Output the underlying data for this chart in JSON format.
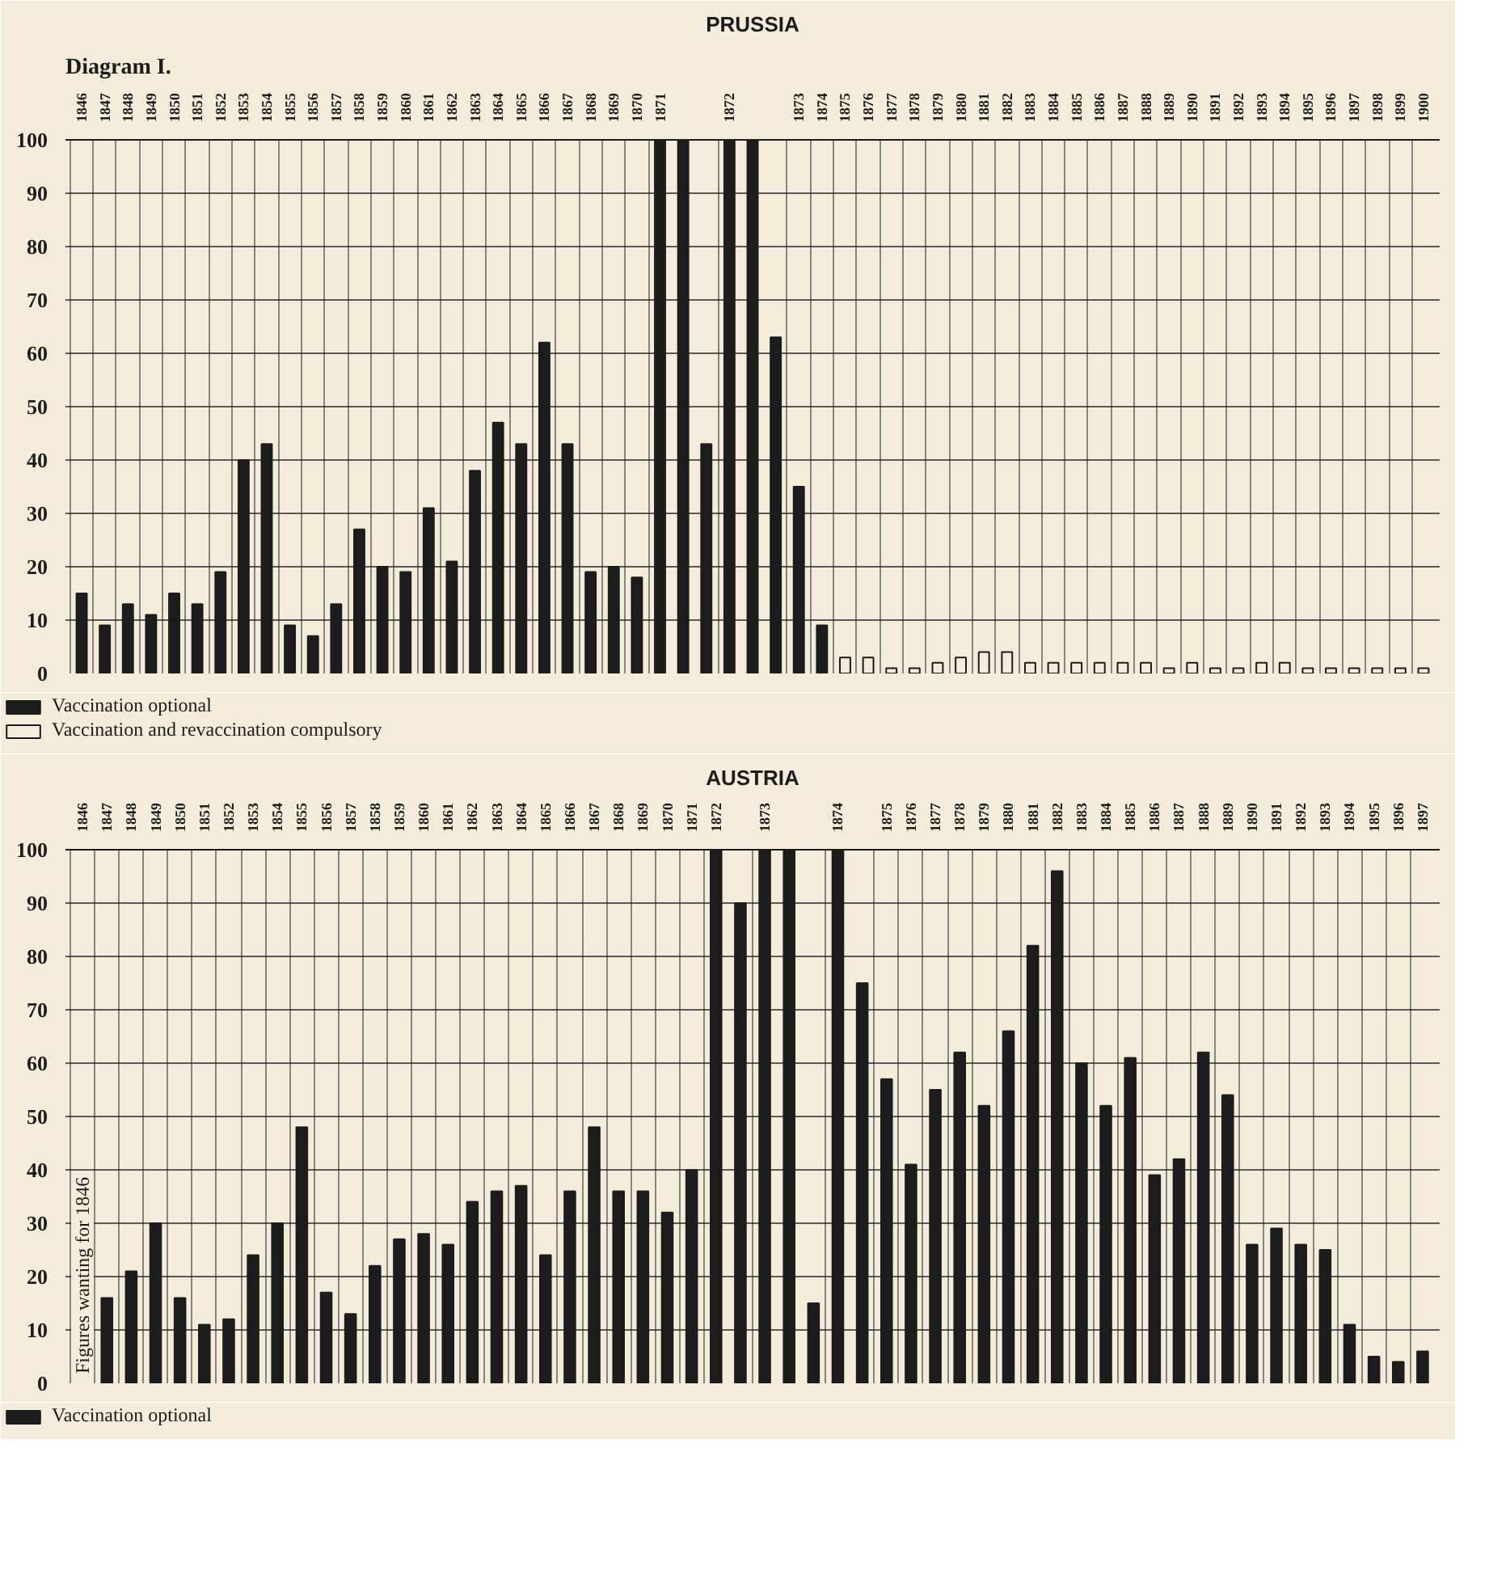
{
  "chart_data": [
    {
      "type": "bar",
      "title": "PRUSSIA",
      "annotations": [
        "Diagram I."
      ],
      "categories": [
        "1846",
        "1847",
        "1848",
        "1849",
        "1850",
        "1851",
        "1852",
        "1853",
        "1854",
        "1855",
        "1856",
        "1857",
        "1858",
        "1859",
        "1860",
        "1861",
        "1862",
        "1863",
        "1864",
        "1865",
        "1866",
        "1867",
        "1868",
        "1869",
        "1870",
        "1871",
        null,
        null,
        "1872",
        null,
        null,
        "1873",
        "1874",
        "1875",
        "1876",
        "1877",
        "1878",
        "1879",
        "1880",
        "1881",
        "1882",
        "1883",
        "1884",
        "1885",
        "1886",
        "1887",
        "1888",
        "1889",
        "1890",
        "1891",
        "1892",
        "1893",
        "1894",
        "1895",
        "1896",
        "1897",
        "1898",
        "1899",
        "1900"
      ],
      "series": [
        {
          "name": "Vaccination optional",
          "color": "#1c1c1c",
          "values": [
            15,
            9,
            13,
            11,
            15,
            13,
            19,
            40,
            43,
            9,
            7,
            13,
            27,
            20,
            19,
            31,
            21,
            38,
            47,
            43,
            62,
            43,
            19,
            20,
            18,
            100,
            100,
            43,
            100,
            100,
            63,
            35,
            9,
            null,
            null,
            null,
            null,
            null,
            null,
            null,
            null,
            null,
            null,
            null,
            null,
            null,
            null,
            null,
            null,
            null,
            null,
            null,
            null,
            null,
            null,
            null,
            null,
            null,
            null
          ]
        },
        {
          "name": "Vaccination and revaccination compulsory",
          "color": "#f3ecda",
          "values": [
            null,
            null,
            null,
            null,
            null,
            null,
            null,
            null,
            null,
            null,
            null,
            null,
            null,
            null,
            null,
            null,
            null,
            null,
            null,
            null,
            null,
            null,
            null,
            null,
            null,
            null,
            null,
            null,
            null,
            null,
            null,
            null,
            null,
            3,
            3,
            1,
            1,
            2,
            3,
            4,
            4,
            2,
            2,
            2,
            2,
            2,
            2,
            1,
            2,
            1,
            1,
            2,
            2,
            1,
            1,
            1,
            1,
            1,
            1
          ]
        }
      ],
      "ylim": [
        0,
        100
      ],
      "yticks": [
        0,
        10,
        20,
        30,
        40,
        50,
        60,
        70,
        80,
        90,
        100
      ],
      "grid": true,
      "legend": "bottom left"
    },
    {
      "type": "bar",
      "title": "AUSTRIA",
      "annotations": [
        "Figures wanting for 1846"
      ],
      "categories": [
        "1846",
        "1847",
        "1848",
        "1849",
        "1850",
        "1851",
        "1852",
        "1853",
        "1854",
        "1855",
        "1856",
        "1857",
        "1858",
        "1859",
        "1860",
        "1861",
        "1862",
        "1863",
        "1864",
        "1865",
        "1866",
        "1867",
        "1868",
        "1869",
        "1870",
        "1871",
        "1872",
        null,
        "1873",
        null,
        null,
        "1874",
        null,
        "1875",
        "1876",
        "1877",
        "1878",
        "1879",
        "1880",
        "1881",
        "1882",
        "1883",
        "1884",
        "1885",
        "1886",
        "1887",
        "1888",
        "1889",
        "1890",
        "1891",
        "1892",
        "1893",
        "1894",
        "1895",
        "1896",
        "1897"
      ],
      "series": [
        {
          "name": "Vaccination optional",
          "color": "#1c1c1c",
          "values": [
            null,
            16,
            21,
            30,
            16,
            11,
            12,
            24,
            30,
            48,
            17,
            13,
            22,
            27,
            28,
            26,
            34,
            36,
            37,
            24,
            36,
            48,
            36,
            36,
            32,
            40,
            100,
            90,
            100,
            100,
            15,
            100,
            75,
            57,
            41,
            55,
            62,
            52,
            66,
            82,
            96,
            60,
            52,
            61,
            39,
            42,
            62,
            54,
            26,
            29,
            26,
            25,
            11,
            5,
            4,
            6
          ]
        }
      ],
      "ylim": [
        0,
        100
      ],
      "yticks": [
        0,
        10,
        20,
        30,
        40,
        50,
        60,
        70,
        80,
        90,
        100
      ],
      "grid": true,
      "legend": "bottom left"
    }
  ]
}
